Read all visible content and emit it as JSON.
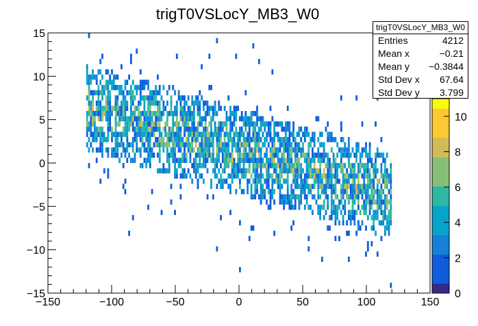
{
  "chart_data": {
    "type": "heatmap",
    "title": "trigT0VSLocY_MB3_W0",
    "xlabel": "",
    "ylabel": "",
    "xlim": [
      -150,
      150
    ],
    "ylim": [
      -15,
      15
    ],
    "x_ticks": [
      "−150",
      "−100",
      "−50",
      "0",
      "50",
      "100",
      "150"
    ],
    "y_ticks": [
      "15",
      "10",
      "5",
      "0",
      "−5",
      "−10",
      "−15"
    ],
    "z_range": [
      0,
      11
    ],
    "z_ticks": [
      "0",
      "2",
      "4",
      "6",
      "8",
      "10"
    ],
    "palette": [
      "#352a87",
      "#0f5cdd",
      "#1481d6",
      "#06a4ca",
      "#2eb7a4",
      "#87bf77",
      "#d1bb59",
      "#fec832",
      "#f9fb0e"
    ],
    "bins_x": 0.0,
    "description": "2D histogram; dense band from x=-120 to x=120, y descending roughly from +6 at x=-120 to -4 at x=120",
    "band": {
      "x_start": -120,
      "x_end": 120,
      "y_at_x_start": 6,
      "y_at_x_end": -4,
      "half_width": 5
    }
  },
  "stats": {
    "title": "trigT0VSLocY_MB3_W0",
    "rows": [
      {
        "label": "Entries",
        "value": "4212"
      },
      {
        "label": "Mean x",
        "value": "−0.21"
      },
      {
        "label": "Mean y",
        "value": "−0.3844"
      },
      {
        "label": "Std Dev x",
        "value": "67.64"
      },
      {
        "label": "Std Dev y",
        "value": "3.799"
      }
    ]
  }
}
